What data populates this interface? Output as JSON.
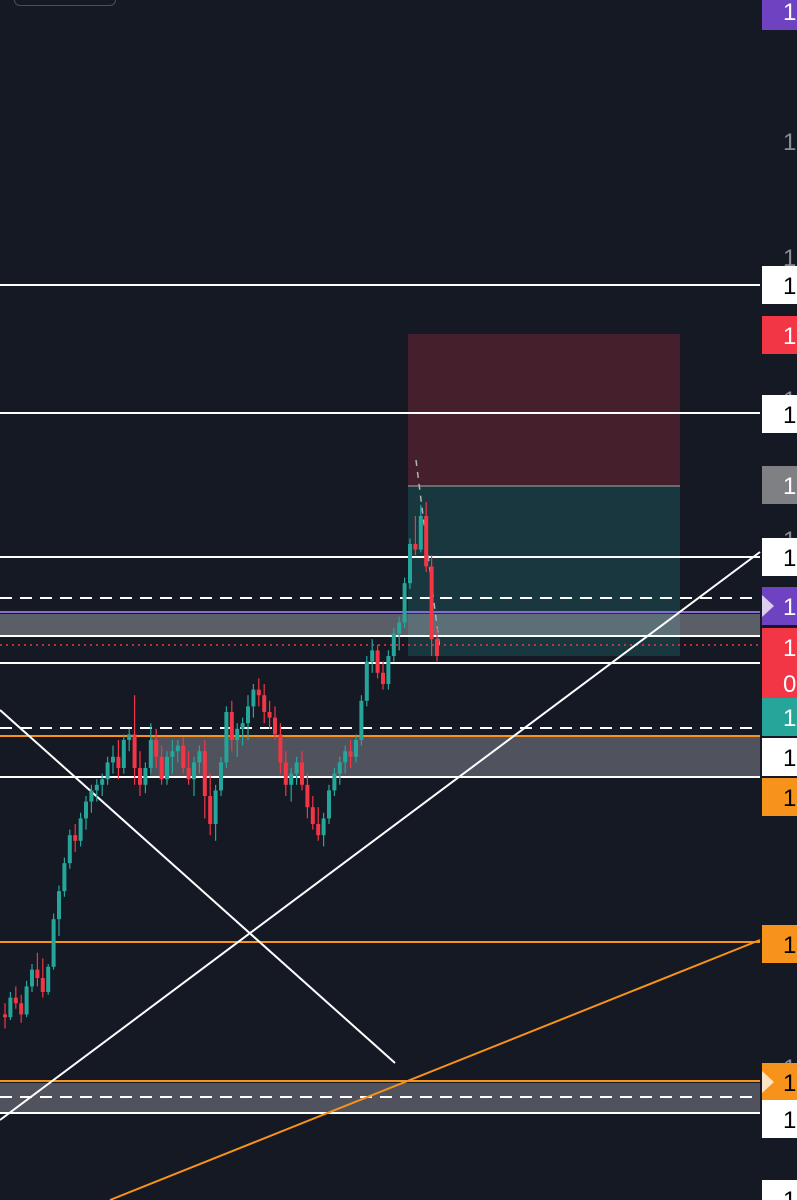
{
  "chart_data": {
    "type": "candlestick",
    "title": "",
    "background": "#151924",
    "colors": {
      "up": "#26a69a",
      "down": "#f23645",
      "white_line": "#ffffff",
      "orange_line": "#f7931a",
      "purple": "#6f42c1",
      "red_zone": "#f23645",
      "green_zone": "#26a69a",
      "grey_zone": "#b0b3ba",
      "label_grey": "#7f8083"
    },
    "price_axis_labels": [
      {
        "id": "top-purple",
        "text": "1",
        "color": "#6f42c1",
        "text_color": "#ffffff"
      },
      {
        "id": "scale-1",
        "text": "1",
        "color": "none",
        "text_color": "#8a8d96"
      },
      {
        "id": "scale-2",
        "text": "1",
        "color": "none",
        "text_color": "#8a8d96"
      },
      {
        "id": "resistance-top",
        "text": "1",
        "color": "#ffffff",
        "text_color": "#000000"
      },
      {
        "id": "stop-loss",
        "text": "1",
        "color": "#f23645",
        "text_color": "#ffffff"
      },
      {
        "id": "scale-3",
        "text": "1",
        "color": "none",
        "text_color": "#8a8d96"
      },
      {
        "id": "resistance-2",
        "text": "1",
        "color": "#ffffff",
        "text_color": "#000000"
      },
      {
        "id": "entry",
        "text": "1",
        "color": "#7f8083",
        "text_color": "#ffffff"
      },
      {
        "id": "scale-4",
        "text": "1",
        "color": "none",
        "text_color": "#8a8d96"
      },
      {
        "id": "resistance-3",
        "text": "1",
        "color": "#ffffff",
        "text_color": "#000000"
      },
      {
        "id": "purple-marker",
        "text": "1",
        "color": "#6f42c1",
        "text_color": "#ffffff"
      },
      {
        "id": "current-price",
        "text": "1",
        "color": "#f23645",
        "text_color": "#ffffff"
      },
      {
        "id": "countdown",
        "text": "0",
        "color": "#f23645",
        "text_color": "#ffffff"
      },
      {
        "id": "take-profit",
        "text": "1",
        "color": "#26a69a",
        "text_color": "#ffffff"
      },
      {
        "id": "support-1",
        "text": "1",
        "color": "#ffffff",
        "text_color": "#000000"
      },
      {
        "id": "orange-1",
        "text": "1",
        "color": "#f7931a",
        "text_color": "#000000"
      },
      {
        "id": "orange-2",
        "text": "1",
        "color": "#f7931a",
        "text_color": "#000000"
      },
      {
        "id": "scale-5",
        "text": "1",
        "color": "none",
        "text_color": "#8a8d96"
      },
      {
        "id": "orange-3",
        "text": "1",
        "color": "#f7931a",
        "text_color": "#000000"
      },
      {
        "id": "support-2",
        "text": "1",
        "color": "#ffffff",
        "text_color": "#000000"
      },
      {
        "id": "bottom-white",
        "text": "1",
        "color": "#ffffff",
        "text_color": "#000000"
      }
    ],
    "candles": [
      [
        1010,
        1030,
        985,
        1005
      ],
      [
        1005,
        1050,
        1000,
        1040
      ],
      [
        1040,
        1060,
        1020,
        1030
      ],
      [
        1030,
        1045,
        995,
        1010
      ],
      [
        1010,
        1070,
        1005,
        1060
      ],
      [
        1060,
        1100,
        1050,
        1090
      ],
      [
        1090,
        1120,
        1060,
        1075
      ],
      [
        1075,
        1110,
        1040,
        1050
      ],
      [
        1050,
        1100,
        1045,
        1095
      ],
      [
        1095,
        1190,
        1090,
        1180
      ],
      [
        1180,
        1240,
        1150,
        1230
      ],
      [
        1230,
        1290,
        1220,
        1280
      ],
      [
        1280,
        1340,
        1270,
        1330
      ],
      [
        1330,
        1350,
        1300,
        1320
      ],
      [
        1320,
        1370,
        1310,
        1360
      ],
      [
        1360,
        1400,
        1340,
        1390
      ],
      [
        1390,
        1420,
        1370,
        1410
      ],
      [
        1410,
        1430,
        1390,
        1420
      ],
      [
        1420,
        1440,
        1400,
        1430
      ],
      [
        1430,
        1470,
        1420,
        1460
      ],
      [
        1460,
        1490,
        1440,
        1470
      ],
      [
        1470,
        1500,
        1430,
        1450
      ],
      [
        1450,
        1510,
        1440,
        1500
      ],
      [
        1500,
        1520,
        1480,
        1510
      ],
      [
        1510,
        1580,
        1420,
        1450
      ],
      [
        1450,
        1480,
        1400,
        1420
      ],
      [
        1420,
        1460,
        1405,
        1450
      ],
      [
        1450,
        1530,
        1440,
        1500
      ],
      [
        1500,
        1520,
        1450,
        1470
      ],
      [
        1470,
        1490,
        1420,
        1430
      ],
      [
        1430,
        1480,
        1420,
        1470
      ],
      [
        1470,
        1500,
        1440,
        1480
      ],
      [
        1480,
        1500,
        1460,
        1490
      ],
      [
        1490,
        1505,
        1440,
        1450
      ],
      [
        1450,
        1480,
        1420,
        1430
      ],
      [
        1430,
        1470,
        1400,
        1460
      ],
      [
        1460,
        1490,
        1440,
        1480
      ],
      [
        1480,
        1500,
        1360,
        1400
      ],
      [
        1400,
        1440,
        1330,
        1350
      ],
      [
        1350,
        1420,
        1320,
        1410
      ],
      [
        1410,
        1470,
        1400,
        1460
      ],
      [
        1460,
        1560,
        1450,
        1550
      ],
      [
        1550,
        1570,
        1480,
        1500
      ],
      [
        1500,
        1530,
        1470,
        1520
      ],
      [
        1520,
        1540,
        1490,
        1530
      ],
      [
        1530,
        1580,
        1500,
        1560
      ],
      [
        1560,
        1600,
        1540,
        1590
      ],
      [
        1590,
        1610,
        1560,
        1580
      ],
      [
        1580,
        1600,
        1530,
        1550
      ],
      [
        1550,
        1570,
        1520,
        1540
      ],
      [
        1540,
        1560,
        1500,
        1510
      ],
      [
        1510,
        1530,
        1440,
        1460
      ],
      [
        1460,
        1480,
        1400,
        1420
      ],
      [
        1420,
        1450,
        1390,
        1440
      ],
      [
        1440,
        1470,
        1420,
        1460
      ],
      [
        1460,
        1480,
        1410,
        1420
      ],
      [
        1420,
        1440,
        1360,
        1380
      ],
      [
        1380,
        1400,
        1340,
        1350
      ],
      [
        1350,
        1380,
        1320,
        1330
      ],
      [
        1330,
        1370,
        1310,
        1360
      ],
      [
        1360,
        1420,
        1350,
        1410
      ],
      [
        1410,
        1450,
        1400,
        1440
      ],
      [
        1440,
        1470,
        1420,
        1460
      ],
      [
        1460,
        1490,
        1440,
        1480
      ],
      [
        1480,
        1500,
        1450,
        1470
      ],
      [
        1470,
        1510,
        1460,
        1500
      ],
      [
        1500,
        1580,
        1490,
        1570
      ],
      [
        1570,
        1650,
        1560,
        1640
      ],
      [
        1640,
        1680,
        1620,
        1660
      ],
      [
        1660,
        1670,
        1610,
        1620
      ],
      [
        1620,
        1640,
        1590,
        1600
      ],
      [
        1600,
        1660,
        1590,
        1650
      ],
      [
        1650,
        1700,
        1640,
        1690
      ],
      [
        1690,
        1720,
        1660,
        1710
      ],
      [
        1710,
        1790,
        1700,
        1780
      ],
      [
        1780,
        1860,
        1770,
        1850
      ],
      [
        1850,
        1900,
        1830,
        1840
      ],
      [
        1840,
        1920,
        1835,
        1900
      ],
      [
        1900,
        1925,
        1800,
        1810
      ],
      [
        1810,
        1830,
        1650,
        1680
      ],
      [
        1680,
        1700,
        1640,
        1650
      ]
    ]
  }
}
